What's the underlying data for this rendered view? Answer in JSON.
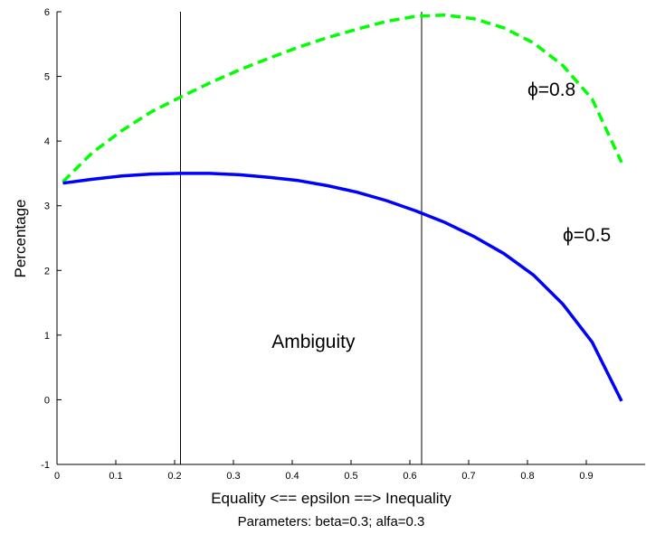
{
  "chart_data": {
    "type": "line",
    "xlabel": "Equality <== epsilon ==> Inequality",
    "ylabel": "Percentage",
    "note": "Parameters: beta=0.3; alfa=0.3",
    "xlim": [
      0,
      1
    ],
    "ylim": [
      -1,
      6
    ],
    "x_ticks": [
      0,
      0.1,
      0.2,
      0.3,
      0.4,
      0.5,
      0.6,
      0.7,
      0.8,
      0.9
    ],
    "x_tick_labels": [
      "0",
      "0.1",
      "0.2",
      "0.3",
      "0.4",
      "0.5",
      "0.6",
      "0.7",
      "0.8",
      "0.9"
    ],
    "y_ticks": [
      -1,
      0,
      1,
      2,
      3,
      4,
      5,
      6
    ],
    "y_tick_labels": [
      "-1",
      "0",
      "1",
      "2",
      "3",
      "4",
      "5",
      "6"
    ],
    "grid": false,
    "vertical_lines": [
      0.21,
      0.62
    ],
    "series": [
      {
        "name": "ϕ=0.8",
        "color": "#00ff00",
        "dash": "dashed",
        "x": [
          0.01,
          0.06,
          0.11,
          0.16,
          0.21,
          0.26,
          0.31,
          0.36,
          0.41,
          0.46,
          0.51,
          0.56,
          0.61,
          0.66,
          0.71,
          0.76,
          0.81,
          0.86,
          0.91,
          0.96
        ],
        "y": [
          3.37,
          3.82,
          4.16,
          4.45,
          4.68,
          4.9,
          5.1,
          5.28,
          5.45,
          5.6,
          5.73,
          5.85,
          5.93,
          5.95,
          5.89,
          5.75,
          5.52,
          5.17,
          4.65,
          3.67
        ]
      },
      {
        "name": "ϕ=0.5",
        "color": "#0000ff",
        "dash": "solid",
        "x": [
          0.01,
          0.06,
          0.11,
          0.16,
          0.21,
          0.26,
          0.31,
          0.36,
          0.41,
          0.46,
          0.51,
          0.56,
          0.61,
          0.66,
          0.71,
          0.76,
          0.81,
          0.86,
          0.91,
          0.96
        ],
        "y": [
          3.35,
          3.41,
          3.46,
          3.49,
          3.5,
          3.5,
          3.48,
          3.44,
          3.39,
          3.31,
          3.21,
          3.08,
          2.92,
          2.74,
          2.52,
          2.26,
          1.93,
          1.48,
          0.89,
          -0.02
        ]
      }
    ],
    "annotations": [
      {
        "text": "ϕ=0.8",
        "x": 0.8,
        "y": 4.7
      },
      {
        "text": "ϕ=0.5",
        "x": 0.86,
        "y": 2.45
      },
      {
        "text": "Ambiguity",
        "x": 0.365,
        "y": 0.8
      }
    ]
  }
}
